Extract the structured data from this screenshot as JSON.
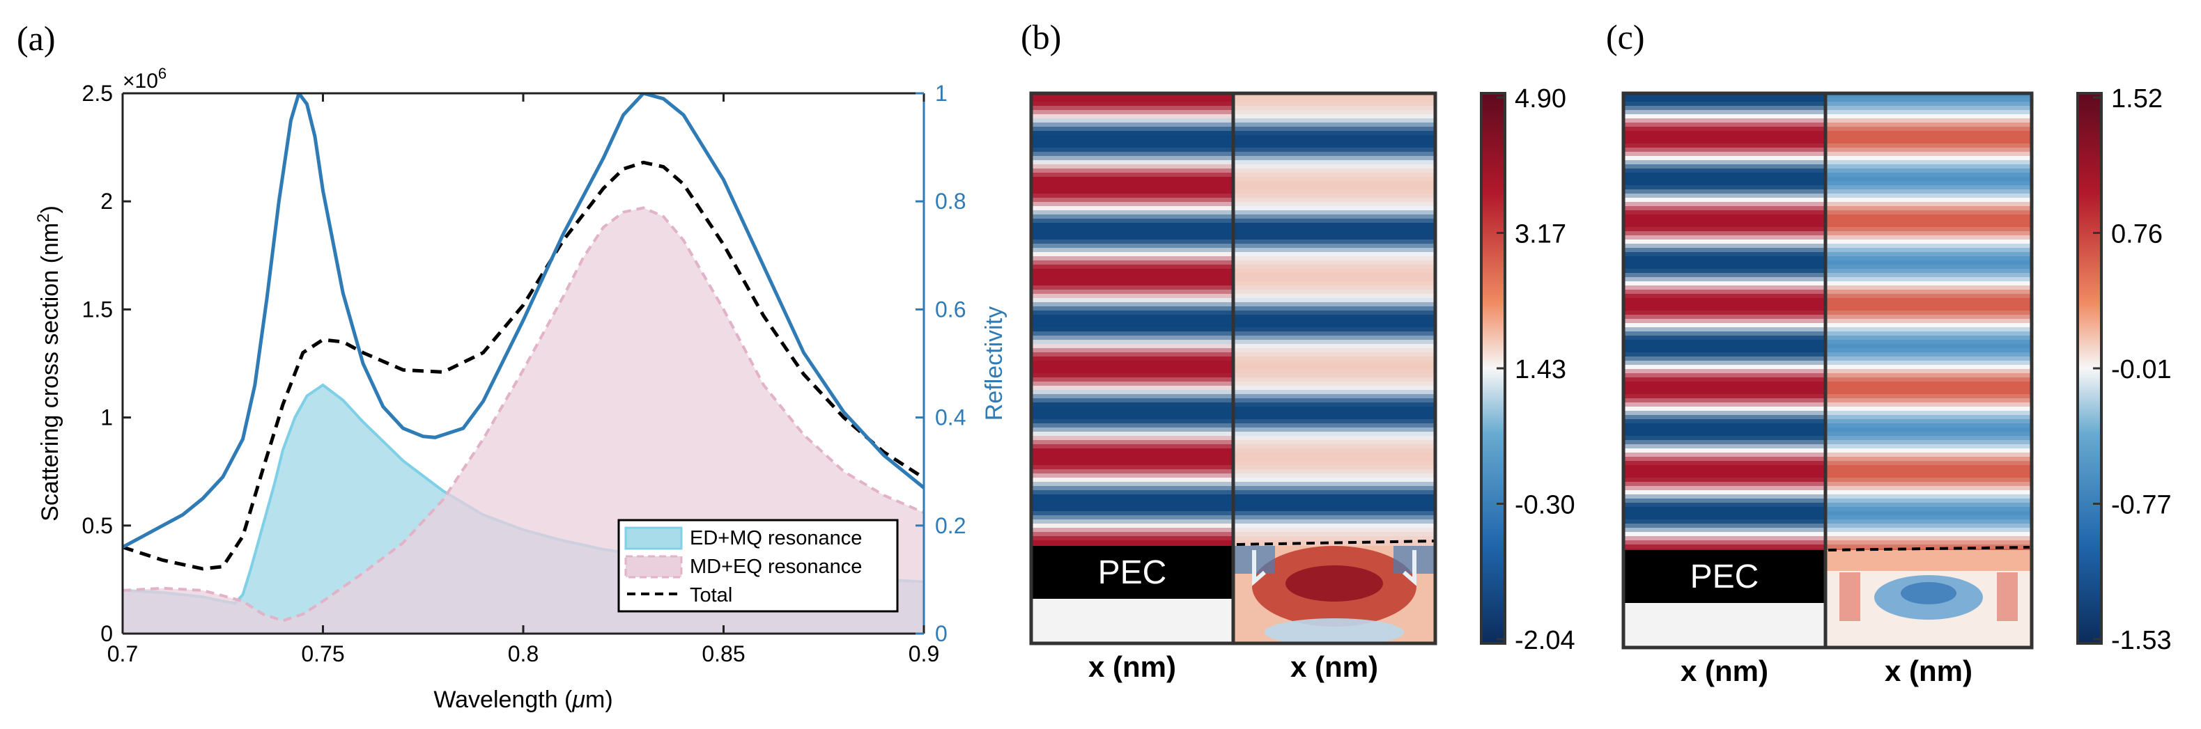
{
  "panels": {
    "a": {
      "letter": "(a)",
      "exponent_label": "×10",
      "exponent_power": "6",
      "ylabel_left_main": "Scattering cross section (nm",
      "ylabel_left_sup": "2",
      "ylabel_left_close": ")",
      "ylabel_right": "Reflectivity",
      "xlabel_main": "Wavelength (",
      "xlabel_mu": "μ",
      "xlabel_unit": "m)"
    },
    "b": {
      "letter": "(b)",
      "pec_label": "PEC",
      "xlabel_left": "x (nm)",
      "xlabel_right": "x (nm)",
      "colorbar_ticks": [
        "4.90",
        "3.17",
        "1.43",
        "-0.30",
        "-2.04"
      ],
      "colorbar_range": [
        -2.04,
        4.9
      ]
    },
    "c": {
      "letter": "(c)",
      "pec_label": "PEC",
      "xlabel_left": "x (nm)",
      "xlabel_right": "x (nm)",
      "colorbar_ticks": [
        "1.52",
        "0.76",
        "-0.01",
        "-0.77",
        "-1.53"
      ],
      "colorbar_range": [
        -1.53,
        1.52
      ]
    }
  },
  "colors": {
    "reflectivity": "#2f7bb6",
    "ed_mq_fill": "#a9dcea",
    "ed_mq_line": "#7fd0e6",
    "md_eq_fill": "#ead0dc",
    "md_eq_line": "#e2b2c8",
    "total": "#000000",
    "cmap_red": "#a8142b",
    "cmap_white": "#f7f7f7",
    "cmap_blue": "#0f467d"
  },
  "chart_data": {
    "type": "line",
    "x_axis": {
      "label": "Wavelength (μm)",
      "range": [
        0.7,
        0.9
      ],
      "ticks": [
        "0.7",
        "0.75",
        "0.8",
        "0.85",
        "0.9"
      ]
    },
    "y_left": {
      "label": "Scattering cross section (nm²)",
      "range": [
        0,
        2.5
      ],
      "multiplier": "×10^6",
      "ticks": [
        "0",
        "0.5",
        "1",
        "1.5",
        "2",
        "2.5"
      ]
    },
    "y_right": {
      "label": "Reflectivity",
      "range": [
        0,
        1
      ],
      "ticks": [
        "0",
        "0.2",
        "0.4",
        "0.6",
        "0.8",
        "1"
      ]
    },
    "legend": {
      "placement": "bottom-right",
      "entries": [
        "ED+MQ resonance",
        "MD+EQ resonance",
        "Total"
      ]
    },
    "series": [
      {
        "name": "ED+MQ resonance",
        "axis": "left",
        "style": "filled area, solid edge",
        "x": [
          0.7,
          0.71,
          0.72,
          0.725,
          0.728,
          0.73,
          0.732,
          0.735,
          0.738,
          0.74,
          0.743,
          0.746,
          0.75,
          0.755,
          0.76,
          0.77,
          0.78,
          0.79,
          0.8,
          0.81,
          0.82,
          0.83,
          0.84,
          0.85,
          0.86,
          0.87,
          0.88,
          0.89,
          0.9
        ],
        "values": [
          0.2,
          0.19,
          0.17,
          0.15,
          0.14,
          0.18,
          0.3,
          0.5,
          0.7,
          0.85,
          1.0,
          1.1,
          1.15,
          1.08,
          0.98,
          0.8,
          0.66,
          0.55,
          0.48,
          0.43,
          0.39,
          0.36,
          0.34,
          0.32,
          0.3,
          0.28,
          0.26,
          0.25,
          0.24
        ]
      },
      {
        "name": "MD+EQ resonance",
        "axis": "left",
        "style": "filled area, dashed edge",
        "x": [
          0.7,
          0.71,
          0.72,
          0.73,
          0.735,
          0.74,
          0.745,
          0.75,
          0.76,
          0.77,
          0.78,
          0.79,
          0.8,
          0.81,
          0.815,
          0.82,
          0.825,
          0.83,
          0.835,
          0.84,
          0.85,
          0.86,
          0.87,
          0.88,
          0.89,
          0.9
        ],
        "values": [
          0.2,
          0.21,
          0.2,
          0.15,
          0.09,
          0.06,
          0.09,
          0.15,
          0.28,
          0.42,
          0.62,
          0.9,
          1.22,
          1.56,
          1.74,
          1.88,
          1.95,
          1.97,
          1.93,
          1.82,
          1.5,
          1.15,
          0.92,
          0.75,
          0.64,
          0.56
        ]
      },
      {
        "name": "Total",
        "axis": "left",
        "style": "dashed line",
        "x": [
          0.7,
          0.71,
          0.72,
          0.725,
          0.73,
          0.735,
          0.74,
          0.745,
          0.75,
          0.755,
          0.76,
          0.77,
          0.78,
          0.79,
          0.8,
          0.81,
          0.82,
          0.825,
          0.83,
          0.835,
          0.84,
          0.85,
          0.86,
          0.87,
          0.88,
          0.89,
          0.9
        ],
        "values": [
          0.4,
          0.34,
          0.3,
          0.31,
          0.45,
          0.76,
          1.06,
          1.3,
          1.36,
          1.35,
          1.3,
          1.22,
          1.21,
          1.3,
          1.52,
          1.82,
          2.06,
          2.15,
          2.18,
          2.16,
          2.08,
          1.8,
          1.47,
          1.2,
          1.0,
          0.84,
          0.72
        ]
      },
      {
        "name": "Reflectivity",
        "axis": "right",
        "style": "solid line",
        "x": [
          0.7,
          0.705,
          0.71,
          0.715,
          0.72,
          0.725,
          0.73,
          0.733,
          0.736,
          0.739,
          0.742,
          0.744,
          0.746,
          0.748,
          0.75,
          0.755,
          0.76,
          0.765,
          0.77,
          0.775,
          0.778,
          0.785,
          0.79,
          0.8,
          0.81,
          0.82,
          0.825,
          0.83,
          0.835,
          0.84,
          0.85,
          0.86,
          0.87,
          0.88,
          0.89,
          0.9
        ],
        "values": [
          0.16,
          0.18,
          0.2,
          0.22,
          0.25,
          0.29,
          0.36,
          0.46,
          0.62,
          0.8,
          0.95,
          1.0,
          0.98,
          0.92,
          0.82,
          0.63,
          0.5,
          0.42,
          0.38,
          0.365,
          0.363,
          0.38,
          0.43,
          0.58,
          0.74,
          0.88,
          0.96,
          1.0,
          0.99,
          0.96,
          0.84,
          0.68,
          0.52,
          0.41,
          0.33,
          0.27
        ]
      }
    ]
  }
}
